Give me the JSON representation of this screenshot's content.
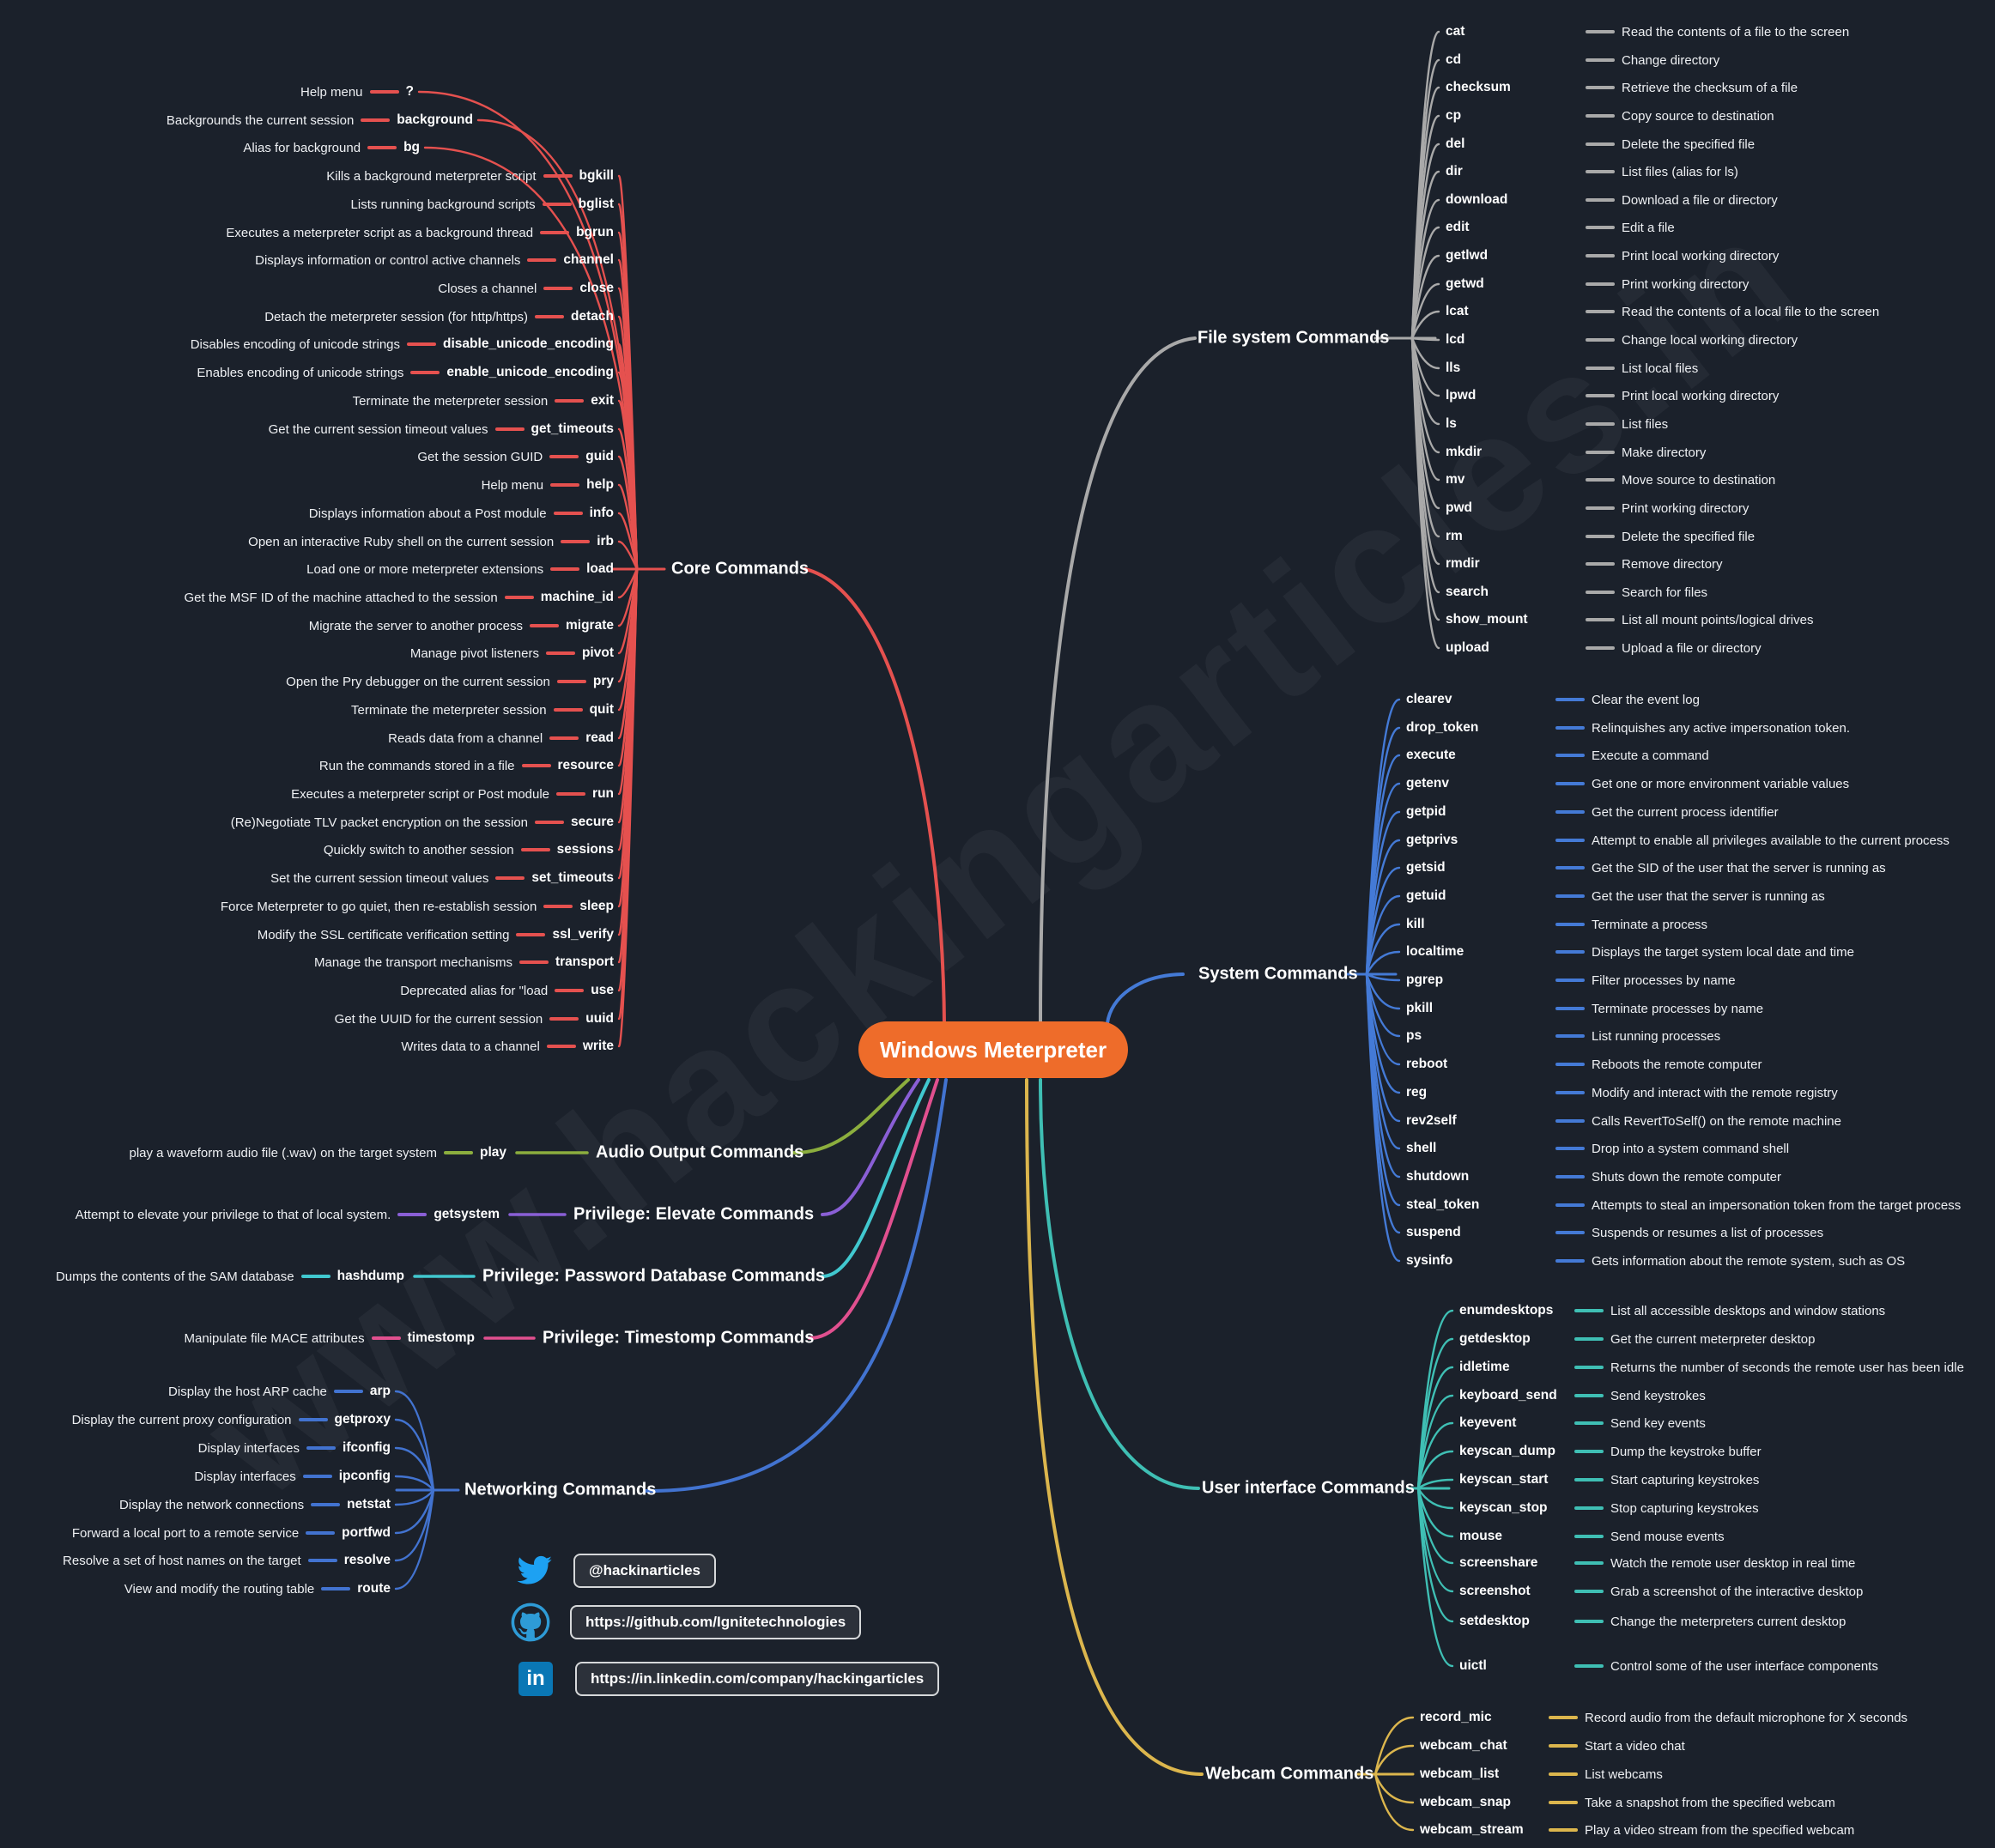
{
  "title": "Windows Meterpreter",
  "watermark": "www.hackingarticles.in",
  "colors": {
    "node": "#ee6c2a",
    "core": "#e5514f",
    "filesystem": "#a9a9a9",
    "system": "#447ad6",
    "ui": "#3fbfb4",
    "webcam": "#dcb64d",
    "audio": "#8cae3e",
    "elevate": "#8a5fd6",
    "passdb": "#41c8cf",
    "timestomp": "#e1508f",
    "networking": "#4273d0",
    "twitter": "#1da1f2",
    "github": "#2e9bd6",
    "linkedin": "#0a77b5"
  },
  "sections": {
    "core": {
      "label": "Core Commands",
      "items": [
        {
          "desc": "Help menu",
          "cmd": "?"
        },
        {
          "desc": "Backgrounds the current session",
          "cmd": "background"
        },
        {
          "desc": "Alias for background",
          "cmd": "bg"
        },
        {
          "desc": "Kills a background meterpreter script",
          "cmd": "bgkill"
        },
        {
          "desc": "Lists running background scripts",
          "cmd": "bglist"
        },
        {
          "desc": "Executes a meterpreter script as a background thread",
          "cmd": "bgrun"
        },
        {
          "desc": "Displays information or control active channels",
          "cmd": "channel"
        },
        {
          "desc": "Closes a channel",
          "cmd": "close"
        },
        {
          "desc": "Detach the meterpreter session (for http/https)",
          "cmd": "detach"
        },
        {
          "desc": "Disables encoding of unicode strings",
          "cmd": "disable_unicode_encoding"
        },
        {
          "desc": "Enables encoding of unicode strings",
          "cmd": "enable_unicode_encoding"
        },
        {
          "desc": "Terminate the meterpreter session",
          "cmd": "exit"
        },
        {
          "desc": "Get the current session timeout values",
          "cmd": "get_timeouts"
        },
        {
          "desc": "Get the session GUID",
          "cmd": "guid"
        },
        {
          "desc": "Help menu",
          "cmd": "help"
        },
        {
          "desc": "Displays information about a Post module",
          "cmd": "info"
        },
        {
          "desc": "Open an interactive Ruby shell on the current session",
          "cmd": "irb"
        },
        {
          "desc": "Load one or more meterpreter extensions",
          "cmd": "load"
        },
        {
          "desc": "Get the MSF ID of the machine attached to the session",
          "cmd": "machine_id"
        },
        {
          "desc": "Migrate the server to another process",
          "cmd": "migrate"
        },
        {
          "desc": "Manage pivot listeners",
          "cmd": "pivot"
        },
        {
          "desc": "Open the Pry debugger on the current session",
          "cmd": "pry"
        },
        {
          "desc": "Terminate the meterpreter session",
          "cmd": "quit"
        },
        {
          "desc": "Reads data from a channel",
          "cmd": "read"
        },
        {
          "desc": "Run the commands stored in a file",
          "cmd": "resource"
        },
        {
          "desc": "Executes a meterpreter script or Post module",
          "cmd": "run"
        },
        {
          "desc": "(Re)Negotiate TLV packet encryption on the session",
          "cmd": "secure"
        },
        {
          "desc": "Quickly switch to another session",
          "cmd": "sessions"
        },
        {
          "desc": "Set the current session timeout values",
          "cmd": "set_timeouts"
        },
        {
          "desc": "Force Meterpreter to go quiet, then re-establish session",
          "cmd": "sleep"
        },
        {
          "desc": "Modify the SSL certificate verification setting",
          "cmd": "ssl_verify"
        },
        {
          "desc": "Manage the transport mechanisms",
          "cmd": "transport"
        },
        {
          "desc": "Deprecated alias for \"load",
          "cmd": "use"
        },
        {
          "desc": "Get the UUID for the current session",
          "cmd": "uuid"
        },
        {
          "desc": "Writes data to a channel",
          "cmd": "write"
        }
      ]
    },
    "filesystem": {
      "label": "File system Commands",
      "items": [
        {
          "cmd": "cat",
          "desc": "Read the contents of a file to the screen"
        },
        {
          "cmd": "cd",
          "desc": "Change directory"
        },
        {
          "cmd": "checksum",
          "desc": "Retrieve the checksum of a file"
        },
        {
          "cmd": "cp",
          "desc": "Copy source to destination"
        },
        {
          "cmd": "del",
          "desc": "Delete the specified file"
        },
        {
          "cmd": "dir",
          "desc": "List files (alias for ls)"
        },
        {
          "cmd": "download",
          "desc": "Download a file or directory"
        },
        {
          "cmd": "edit",
          "desc": "Edit a file"
        },
        {
          "cmd": "getlwd",
          "desc": "Print local working directory"
        },
        {
          "cmd": "getwd",
          "desc": "Print working directory"
        },
        {
          "cmd": "lcat",
          "desc": "Read the contents of a local file to the screen"
        },
        {
          "cmd": "lcd",
          "desc": "Change local working directory"
        },
        {
          "cmd": "lls",
          "desc": "List local files"
        },
        {
          "cmd": "lpwd",
          "desc": "Print local working directory"
        },
        {
          "cmd": "ls",
          "desc": "List files"
        },
        {
          "cmd": "mkdir",
          "desc": "Make directory"
        },
        {
          "cmd": "mv",
          "desc": "Move source to destination"
        },
        {
          "cmd": "pwd",
          "desc": "Print working directory"
        },
        {
          "cmd": "rm",
          "desc": "Delete the specified file"
        },
        {
          "cmd": "rmdir",
          "desc": "Remove directory"
        },
        {
          "cmd": "search",
          "desc": "Search for files"
        },
        {
          "cmd": "show_mount",
          "desc": "List all mount points/logical drives"
        },
        {
          "cmd": "upload",
          "desc": "Upload a file or directory"
        }
      ]
    },
    "system": {
      "label": "System Commands",
      "items": [
        {
          "cmd": "clearev",
          "desc": "Clear the event log"
        },
        {
          "cmd": "drop_token",
          "desc": "Relinquishes any active impersonation token."
        },
        {
          "cmd": "execute",
          "desc": "Execute a command"
        },
        {
          "cmd": "getenv",
          "desc": "Get one or more environment variable values"
        },
        {
          "cmd": "getpid",
          "desc": "Get the current process identifier"
        },
        {
          "cmd": "getprivs",
          "desc": "Attempt to enable all privileges available to the current process"
        },
        {
          "cmd": "getsid",
          "desc": "Get the SID of the user that the server is running as"
        },
        {
          "cmd": "getuid",
          "desc": "Get the user that the server is running as"
        },
        {
          "cmd": "kill",
          "desc": "Terminate a process"
        },
        {
          "cmd": "localtime",
          "desc": "Displays the target system local date and time"
        },
        {
          "cmd": "pgrep",
          "desc": "Filter processes by name"
        },
        {
          "cmd": "pkill",
          "desc": "Terminate processes by name"
        },
        {
          "cmd": "ps",
          "desc": "List running processes"
        },
        {
          "cmd": "reboot",
          "desc": "Reboots the remote computer"
        },
        {
          "cmd": "reg",
          "desc": "Modify and interact with the remote registry"
        },
        {
          "cmd": "rev2self",
          "desc": "Calls RevertToSelf() on the remote machine"
        },
        {
          "cmd": "shell",
          "desc": "Drop into a system command shell"
        },
        {
          "cmd": "shutdown",
          "desc": "Shuts down the remote computer"
        },
        {
          "cmd": "steal_token",
          "desc": "Attempts to steal an impersonation token from the target process"
        },
        {
          "cmd": "suspend",
          "desc": "Suspends or resumes a list of processes"
        },
        {
          "cmd": "sysinfo",
          "desc": "Gets information about the remote system, such as OS"
        }
      ]
    },
    "ui": {
      "label": "User interface Commands",
      "items": [
        {
          "cmd": "enumdesktops",
          "desc": "List all accessible desktops and window stations"
        },
        {
          "cmd": "getdesktop",
          "desc": "Get the current meterpreter desktop"
        },
        {
          "cmd": "idletime",
          "desc": "Returns the number of seconds the remote user has been idle"
        },
        {
          "cmd": "keyboard_send",
          "desc": "Send keystrokes"
        },
        {
          "cmd": "keyevent",
          "desc": "Send key events"
        },
        {
          "cmd": "keyscan_dump",
          "desc": "Dump the keystroke buffer"
        },
        {
          "cmd": "keyscan_start",
          "desc": "Start capturing keystrokes"
        },
        {
          "cmd": "keyscan_stop",
          "desc": "Stop capturing keystrokes"
        },
        {
          "cmd": "mouse",
          "desc": "Send mouse events"
        },
        {
          "cmd": "screenshare",
          "desc": "Watch the remote user desktop in real time"
        },
        {
          "cmd": "screenshot",
          "desc": "Grab a screenshot of the interactive desktop"
        },
        {
          "cmd": "setdesktop",
          "desc": "Change the meterpreters current desktop"
        },
        {
          "cmd": "uictl",
          "desc": "Control some of the user interface components"
        }
      ]
    },
    "webcam": {
      "label": "Webcam Commands",
      "items": [
        {
          "cmd": "record_mic",
          "desc": "Record audio from the default microphone for X seconds"
        },
        {
          "cmd": "webcam_chat",
          "desc": "Start a video chat"
        },
        {
          "cmd": "webcam_list",
          "desc": "List webcams"
        },
        {
          "cmd": "webcam_snap",
          "desc": "Take a snapshot from the specified webcam"
        },
        {
          "cmd": "webcam_stream",
          "desc": "Play a video stream from the specified webcam"
        }
      ]
    },
    "audio": {
      "label": "Audio Output Commands",
      "items": [
        {
          "desc": "play a waveform audio file (.wav) on the target system",
          "cmd": "play"
        }
      ]
    },
    "elevate": {
      "label": "Privilege: Elevate Commands",
      "items": [
        {
          "desc": "Attempt to elevate your privilege to that of local system.",
          "cmd": "getsystem"
        }
      ]
    },
    "passdb": {
      "label": "Privilege: Password Database Commands",
      "items": [
        {
          "desc": "Dumps the contents of the SAM database",
          "cmd": "hashdump"
        }
      ]
    },
    "timestomp": {
      "label": "Privilege: Timestomp Commands",
      "items": [
        {
          "desc": "Manipulate file MACE attributes",
          "cmd": "timestomp"
        }
      ]
    },
    "networking": {
      "label": "Networking Commands",
      "items": [
        {
          "desc": "Display the host ARP cache",
          "cmd": "arp"
        },
        {
          "desc": "Display the current proxy configuration",
          "cmd": "getproxy"
        },
        {
          "desc": "Display interfaces",
          "cmd": "ifconfig"
        },
        {
          "desc": "Display interfaces",
          "cmd": "ipconfig"
        },
        {
          "desc": "Display the network connections",
          "cmd": "netstat"
        },
        {
          "desc": "Forward a local port to a remote service",
          "cmd": "portfwd"
        },
        {
          "desc": "Resolve a set of host names on the target",
          "cmd": "resolve"
        },
        {
          "desc": "View and modify the routing table",
          "cmd": "route"
        }
      ]
    }
  },
  "social": [
    {
      "platform": "twitter",
      "text": "@hackinarticles"
    },
    {
      "platform": "github",
      "text": "https://github.com/Ignitetechnologies"
    },
    {
      "platform": "linkedin",
      "text": "https://in.linkedin.com/company/hackingarticles"
    }
  ]
}
